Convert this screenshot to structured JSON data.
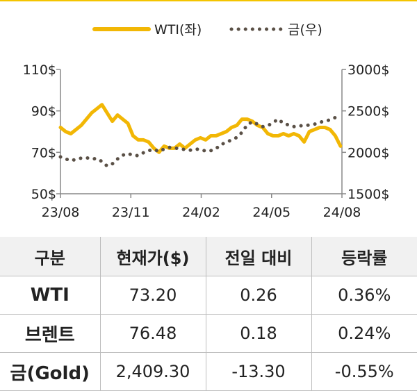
{
  "chart_data": {
    "type": "line",
    "title": "",
    "legend": {
      "placement": "top-center"
    },
    "grid": false,
    "x_ticks": [
      "23/08",
      "23/11",
      "24/02",
      "24/05",
      "24/08"
    ],
    "y_left": {
      "ticks": [
        "110$",
        "90$",
        "70$",
        "50$"
      ],
      "range": [
        50,
        110
      ]
    },
    "y_right": {
      "ticks": [
        "3000$",
        "2500$",
        "2000$",
        "1500$"
      ],
      "range": [
        1500,
        3000
      ]
    },
    "series": [
      {
        "name": "WTI(좌)",
        "axis": "left",
        "style": "solid",
        "color": "#f2b705",
        "x": [
          "2023-08-01",
          "2023-08-08",
          "2023-08-15",
          "2023-08-22",
          "2023-08-29",
          "2023-09-05",
          "2023-09-12",
          "2023-09-19",
          "2023-09-26",
          "2023-10-03",
          "2023-10-10",
          "2023-10-17",
          "2023-10-24",
          "2023-10-31",
          "2023-11-07",
          "2023-11-14",
          "2023-11-21",
          "2023-11-28",
          "2023-12-05",
          "2023-12-12",
          "2023-12-19",
          "2023-12-26",
          "2024-01-02",
          "2024-01-09",
          "2024-01-16",
          "2024-01-23",
          "2024-01-30",
          "2024-02-06",
          "2024-02-13",
          "2024-02-20",
          "2024-02-27",
          "2024-03-05",
          "2024-03-12",
          "2024-03-19",
          "2024-03-26",
          "2024-04-02",
          "2024-04-09",
          "2024-04-16",
          "2024-04-23",
          "2024-04-30",
          "2024-05-07",
          "2024-05-14",
          "2024-05-21",
          "2024-05-28",
          "2024-06-04",
          "2024-06-11",
          "2024-06-18",
          "2024-06-25",
          "2024-07-02",
          "2024-07-09",
          "2024-07-16",
          "2024-07-23",
          "2024-07-30",
          "2024-08-06",
          "2024-08-13"
        ],
        "values": [
          82,
          80,
          79,
          81,
          83,
          86,
          89,
          91,
          93,
          89,
          85,
          88,
          86,
          84,
          78,
          76,
          76,
          75,
          72,
          70,
          73,
          72,
          72,
          74,
          72,
          74,
          76,
          77,
          76,
          78,
          78,
          79,
          80,
          82,
          83,
          86,
          86,
          85,
          83,
          82,
          79,
          78,
          78,
          79,
          78,
          79,
          78,
          75,
          80,
          81,
          82,
          82,
          81,
          78,
          73
        ]
      },
      {
        "name": "금(우)",
        "axis": "right",
        "style": "dotted",
        "color": "#5a5046",
        "x": [
          "2023-08-01",
          "2023-08-08",
          "2023-08-15",
          "2023-08-22",
          "2023-08-29",
          "2023-09-05",
          "2023-09-12",
          "2023-09-19",
          "2023-09-26",
          "2023-10-03",
          "2023-10-10",
          "2023-10-17",
          "2023-10-24",
          "2023-10-31",
          "2023-11-07",
          "2023-11-14",
          "2023-11-21",
          "2023-11-28",
          "2023-12-05",
          "2023-12-12",
          "2023-12-19",
          "2023-12-26",
          "2024-01-02",
          "2024-01-09",
          "2024-01-16",
          "2024-01-23",
          "2024-01-30",
          "2024-02-06",
          "2024-02-13",
          "2024-02-20",
          "2024-02-27",
          "2024-03-05",
          "2024-03-12",
          "2024-03-19",
          "2024-03-26",
          "2024-04-02",
          "2024-04-09",
          "2024-04-16",
          "2024-04-23",
          "2024-04-30",
          "2024-05-07",
          "2024-05-14",
          "2024-05-21",
          "2024-05-28",
          "2024-06-04",
          "2024-06-11",
          "2024-06-18",
          "2024-06-25",
          "2024-07-02",
          "2024-07-09",
          "2024-07-16",
          "2024-07-23",
          "2024-07-30",
          "2024-08-06",
          "2024-08-13"
        ],
        "values": [
          1945,
          1920,
          1900,
          1915,
          1930,
          1935,
          1920,
          1925,
          1890,
          1835,
          1860,
          1920,
          1965,
          1985,
          1965,
          1960,
          1995,
          2020,
          2035,
          2010,
          2040,
          2060,
          2055,
          2040,
          2035,
          2025,
          2040,
          2035,
          2015,
          2020,
          2045,
          2095,
          2120,
          2150,
          2180,
          2240,
          2330,
          2370,
          2340,
          2310,
          2320,
          2360,
          2400,
          2350,
          2330,
          2310,
          2320,
          2320,
          2330,
          2340,
          2360,
          2380,
          2390,
          2420,
          2430
        ]
      }
    ]
  },
  "table": {
    "headers": [
      "구분",
      "현재가($)",
      "전일 대비",
      "등락률"
    ],
    "rows": [
      [
        "WTI",
        "73.20",
        "0.26",
        "0.36%"
      ],
      [
        "브렌트",
        "76.48",
        "0.18",
        "0.24%"
      ],
      [
        "금(Gold)",
        "2,409.30",
        "-13.30",
        "-0.55%"
      ]
    ]
  }
}
